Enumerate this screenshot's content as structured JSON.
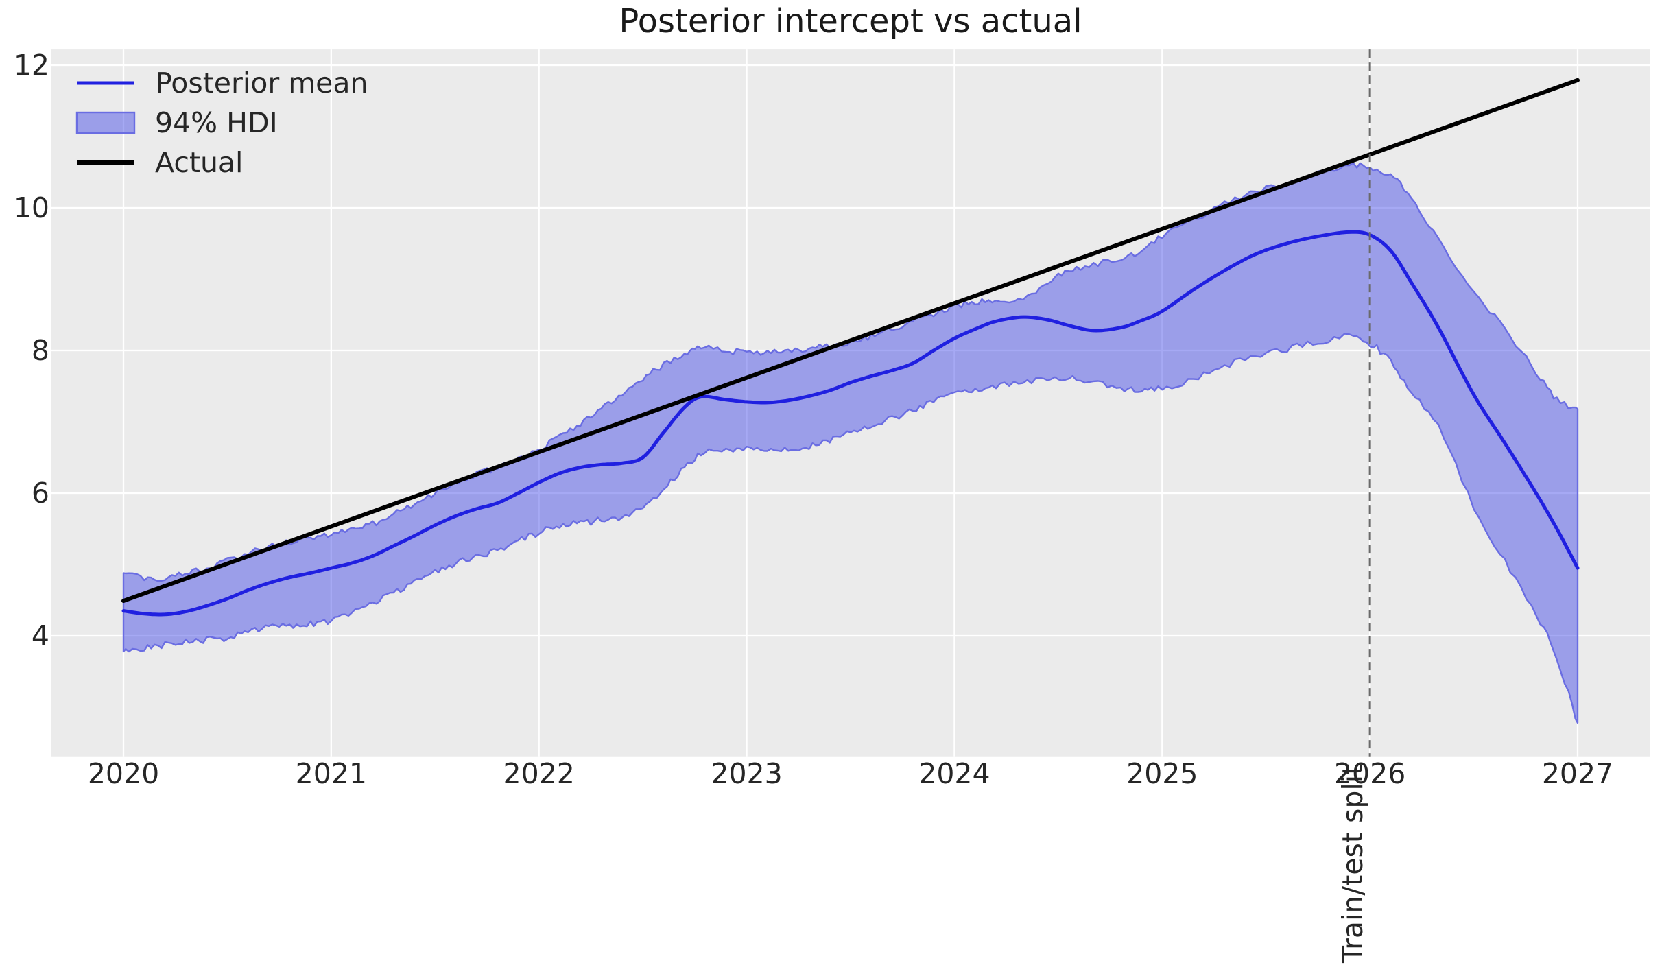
{
  "title": "Posterior intercept vs actual",
  "colors": {
    "figure_bg": "#ffffff",
    "axes_bg": "#ebebeb",
    "grid": "#ffffff",
    "mean_line": "#2020e0",
    "band_fill": "rgba(57,64,231,0.45)",
    "band_edge": "#6a6de2",
    "actual_line": "#000000",
    "split_line": "#6a6a6a",
    "text": "#262626"
  },
  "legend": {
    "items": [
      {
        "label": "Posterior mean",
        "swatch": "line",
        "color": "#2020e0"
      },
      {
        "label": "94% HDI",
        "swatch": "patch",
        "color": "rgba(57,64,231,0.45)"
      },
      {
        "label": "Actual",
        "swatch": "line",
        "color": "#000000"
      }
    ]
  },
  "axes": {
    "x_ticks": [
      {
        "label": "2020",
        "value": 2020
      },
      {
        "label": "2021",
        "value": 2021
      },
      {
        "label": "2022",
        "value": 2022
      },
      {
        "label": "2023",
        "value": 2023
      },
      {
        "label": "2024",
        "value": 2024
      },
      {
        "label": "2025",
        "value": 2025
      },
      {
        "label": "2026",
        "value": 2026
      },
      {
        "label": "2027",
        "value": 2027
      }
    ],
    "y_ticks": [
      {
        "label": "12",
        "value": 12
      },
      {
        "label": "10",
        "value": 10
      },
      {
        "label": "8",
        "value": 8
      },
      {
        "label": "6",
        "value": 6
      },
      {
        "label": "4",
        "value": 4
      }
    ]
  },
  "split": {
    "x": 2026.0,
    "label": "Train/test split"
  },
  "chart_data": {
    "type": "line",
    "title": "Posterior intercept vs actual",
    "xlabel": "",
    "ylabel": "",
    "xlim": [
      2019.65,
      2027.35
    ],
    "ylim": [
      2.31,
      12.22
    ],
    "x_ticks": [
      2020,
      2021,
      2022,
      2023,
      2024,
      2025,
      2026,
      2027
    ],
    "y_ticks": [
      4,
      6,
      8,
      10,
      12
    ],
    "grid": true,
    "legend_position": "upper left",
    "vline": {
      "x": 2026.0,
      "label": "Train/test split",
      "style": "dashed"
    },
    "x": [
      2020.0,
      2020.1,
      2020.2,
      2020.3,
      2020.4,
      2020.5,
      2020.6,
      2020.7,
      2020.8,
      2020.9,
      2021.0,
      2021.1,
      2021.2,
      2021.3,
      2021.4,
      2021.5,
      2021.6,
      2021.7,
      2021.8,
      2021.9,
      2022.0,
      2022.1,
      2022.2,
      2022.3,
      2022.4,
      2022.5,
      2022.6,
      2022.7,
      2022.78,
      2022.9,
      2023.0,
      2023.1,
      2023.2,
      2023.3,
      2023.4,
      2023.5,
      2023.6,
      2023.7,
      2023.8,
      2023.9,
      2024.0,
      2024.1,
      2024.2,
      2024.33,
      2024.45,
      2024.55,
      2024.67,
      2024.8,
      2024.9,
      2025.0,
      2025.15,
      2025.3,
      2025.45,
      2025.6,
      2025.75,
      2025.9,
      2026.0,
      2026.1,
      2026.2,
      2026.33,
      2026.5,
      2026.65,
      2026.8,
      2026.9,
      2027.0
    ],
    "series": [
      {
        "name": "Posterior mean",
        "type": "line",
        "color": "#2020e0",
        "y": [
          4.35,
          4.31,
          4.3,
          4.34,
          4.42,
          4.52,
          4.64,
          4.74,
          4.82,
          4.88,
          4.95,
          5.02,
          5.12,
          5.26,
          5.4,
          5.55,
          5.68,
          5.78,
          5.86,
          6.0,
          6.15,
          6.28,
          6.36,
          6.4,
          6.42,
          6.5,
          6.85,
          7.2,
          7.35,
          7.31,
          7.28,
          7.27,
          7.3,
          7.36,
          7.44,
          7.55,
          7.64,
          7.72,
          7.82,
          8.0,
          8.17,
          8.3,
          8.41,
          8.47,
          8.43,
          8.35,
          8.28,
          8.32,
          8.42,
          8.55,
          8.85,
          9.12,
          9.35,
          9.5,
          9.6,
          9.66,
          9.62,
          9.4,
          8.95,
          8.32,
          7.38,
          6.7,
          6.0,
          5.5,
          4.95
        ]
      },
      {
        "name": "94% HDI",
        "type": "band",
        "fill": "rgba(57,64,231,0.45)",
        "lower": [
          3.78,
          3.83,
          3.87,
          3.91,
          3.95,
          3.98,
          4.06,
          4.11,
          4.13,
          4.17,
          4.22,
          4.33,
          4.46,
          4.61,
          4.76,
          4.9,
          5.02,
          5.12,
          5.2,
          5.32,
          5.45,
          5.54,
          5.58,
          5.62,
          5.68,
          5.8,
          6.05,
          6.35,
          6.55,
          6.6,
          6.62,
          6.62,
          6.63,
          6.66,
          6.75,
          6.86,
          6.95,
          7.05,
          7.15,
          7.28,
          7.4,
          7.46,
          7.5,
          7.55,
          7.58,
          7.6,
          7.55,
          7.48,
          7.46,
          7.46,
          7.6,
          7.78,
          7.92,
          8.02,
          8.12,
          8.21,
          8.1,
          7.85,
          7.4,
          6.95,
          5.81,
          5.05,
          4.3,
          3.69,
          2.78
        ],
        "upper": [
          4.88,
          4.82,
          4.81,
          4.87,
          4.95,
          5.06,
          5.16,
          5.26,
          5.32,
          5.37,
          5.42,
          5.48,
          5.57,
          5.7,
          5.85,
          6.0,
          6.14,
          6.26,
          6.36,
          6.48,
          6.62,
          6.8,
          6.98,
          7.18,
          7.4,
          7.6,
          7.8,
          7.96,
          8.04,
          8.0,
          7.97,
          7.98,
          8.0,
          8.03,
          8.07,
          8.12,
          8.2,
          8.3,
          8.42,
          8.52,
          8.62,
          8.68,
          8.72,
          8.73,
          8.95,
          9.12,
          9.2,
          9.28,
          9.4,
          9.6,
          9.82,
          10.05,
          10.22,
          10.35,
          10.48,
          10.6,
          10.56,
          10.45,
          10.15,
          9.55,
          8.84,
          8.3,
          7.7,
          7.3,
          7.18
        ]
      },
      {
        "name": "Actual",
        "type": "line",
        "color": "#000000",
        "x": [
          2020.0,
          2027.0
        ],
        "y": [
          4.49,
          11.79
        ]
      }
    ]
  }
}
